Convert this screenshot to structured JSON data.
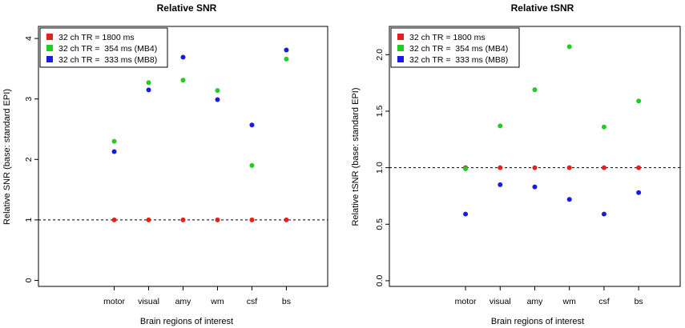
{
  "chart_data": [
    {
      "type": "scatter",
      "title": "Relative SNR",
      "xlabel": "Brain regions of interest",
      "ylabel": "Relative SNR (base: standard EPI)",
      "categories": [
        "motor",
        "visual",
        "amy",
        "wm",
        "csf",
        "bs"
      ],
      "xlim": [
        -1.2,
        7.2
      ],
      "ylim": [
        -0.1,
        4.2
      ],
      "yticks": [
        "0",
        "1",
        "2",
        "3",
        "4"
      ],
      "ytick_values": [
        0,
        1,
        2,
        3,
        4
      ],
      "reference_line": 1.0,
      "legend_position": "top-left",
      "series": [
        {
          "name": "32 ch TR = 1800 ms",
          "color": "#e8201a",
          "values": [
            1,
            1,
            1,
            1,
            1,
            1
          ]
        },
        {
          "name": "32 ch TR =  354 ms (MB4)",
          "color": "#22cc22",
          "values": [
            2.3,
            3.27,
            3.31,
            3.14,
            1.9,
            3.66
          ]
        },
        {
          "name": "32 ch TR =  333 ms (MB8)",
          "color": "#1a1ae6",
          "values": [
            2.13,
            3.15,
            3.69,
            2.99,
            2.57,
            3.81
          ]
        }
      ]
    },
    {
      "type": "scatter",
      "title": "Relative tSNR",
      "xlabel": "Brain regions of interest",
      "ylabel": "Relative tSNR (base: standard EPI)",
      "categories": [
        "motor",
        "visual",
        "amy",
        "wm",
        "csf",
        "bs"
      ],
      "xlim": [
        -1.2,
        7.2
      ],
      "ylim": [
        -0.05,
        2.25
      ],
      "yticks": [
        "0.0",
        "0.5",
        "1.0",
        "1.5",
        "2.0"
      ],
      "ytick_values": [
        0,
        0.5,
        1.0,
        1.5,
        2.0
      ],
      "reference_line": 1.0,
      "legend_position": "top-left",
      "series": [
        {
          "name": "32 ch TR = 1800 ms",
          "color": "#e8201a",
          "values": [
            1,
            1,
            1,
            1,
            1,
            1
          ]
        },
        {
          "name": "32 ch TR =  354 ms (MB4)",
          "color": "#22cc22",
          "values": [
            0.99,
            1.37,
            1.69,
            2.07,
            1.36,
            1.59
          ]
        },
        {
          "name": "32 ch TR =  333 ms (MB8)",
          "color": "#1a1ae6",
          "values": [
            0.59,
            0.85,
            0.83,
            0.72,
            0.59,
            0.78
          ]
        }
      ]
    }
  ]
}
